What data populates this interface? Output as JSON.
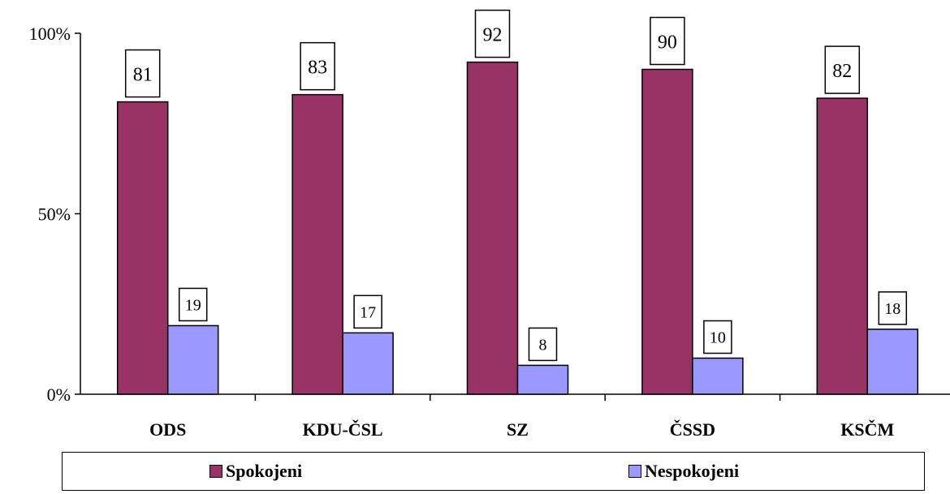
{
  "chart_data": {
    "type": "bar",
    "categories": [
      "ODS",
      "KDU-ČSL",
      "SZ",
      "ČSSD",
      "KSČM"
    ],
    "series": [
      {
        "name": "Spokojeni",
        "values": [
          81,
          83,
          92,
          90,
          82
        ],
        "color": "#993366"
      },
      {
        "name": "Nespokojeni",
        "values": [
          19,
          17,
          8,
          10,
          18
        ],
        "color": "#9999ff"
      }
    ],
    "yticks": [
      "0%",
      "50%",
      "100%"
    ],
    "ylim": [
      0,
      100
    ],
    "legend_position": "bottom",
    "grid": false
  }
}
